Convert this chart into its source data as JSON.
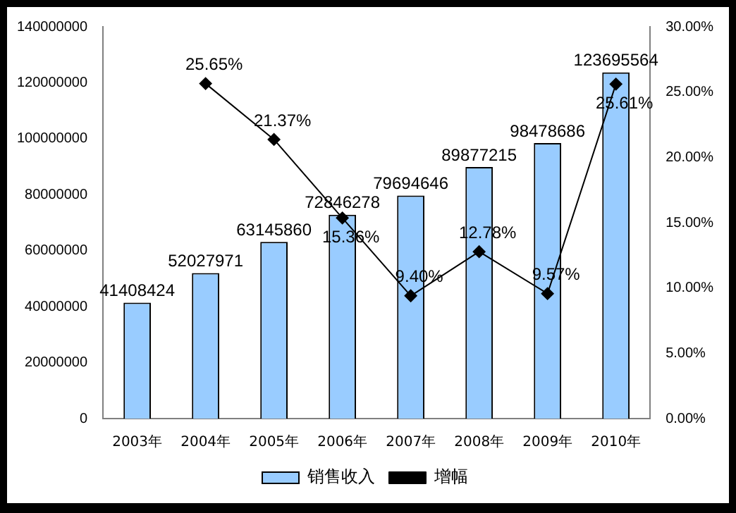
{
  "chart_data": {
    "type": "bar",
    "categories": [
      "2003年",
      "2004年",
      "2005年",
      "2006年",
      "2007年",
      "2008年",
      "2009年",
      "2010年"
    ],
    "series": [
      {
        "name": "销售收入",
        "color": "#99ccff",
        "values": [
          41408424,
          52027971,
          63145860,
          72846278,
          79694646,
          89877215,
          98478686,
          123695564
        ],
        "value_labels": [
          "41408424",
          "52027971",
          "63145860",
          "72846278",
          "79694646",
          "89877215",
          "98478686",
          "123695564"
        ]
      },
      {
        "name": "增幅",
        "type": "line",
        "axis": "y2",
        "color": "#000000",
        "marker": "diamond",
        "values": [
          null,
          25.65,
          21.37,
          15.36,
          9.4,
          12.78,
          9.57,
          25.61
        ],
        "value_labels": [
          null,
          "25.65%",
          "21.37%",
          "15.36%",
          "9.40%",
          "12.78%",
          "9.57%",
          "25.61%"
        ]
      }
    ],
    "ylim": [
      0,
      140000000
    ],
    "yticks": [
      0,
      20000000,
      40000000,
      60000000,
      80000000,
      100000000,
      120000000,
      140000000
    ],
    "y2lim": [
      0,
      30
    ],
    "y2ticks": [
      {
        "value": 0,
        "label": "0.00%"
      },
      {
        "value": 5,
        "label": "5.00%"
      },
      {
        "value": 10,
        "label": "10.00%"
      },
      {
        "value": 15,
        "label": "15.00%"
      },
      {
        "value": 20,
        "label": "20.00%"
      },
      {
        "value": 25,
        "label": "25.00%"
      },
      {
        "value": 30,
        "label": "30.00%"
      }
    ],
    "grid": false,
    "legend": "bottom"
  }
}
